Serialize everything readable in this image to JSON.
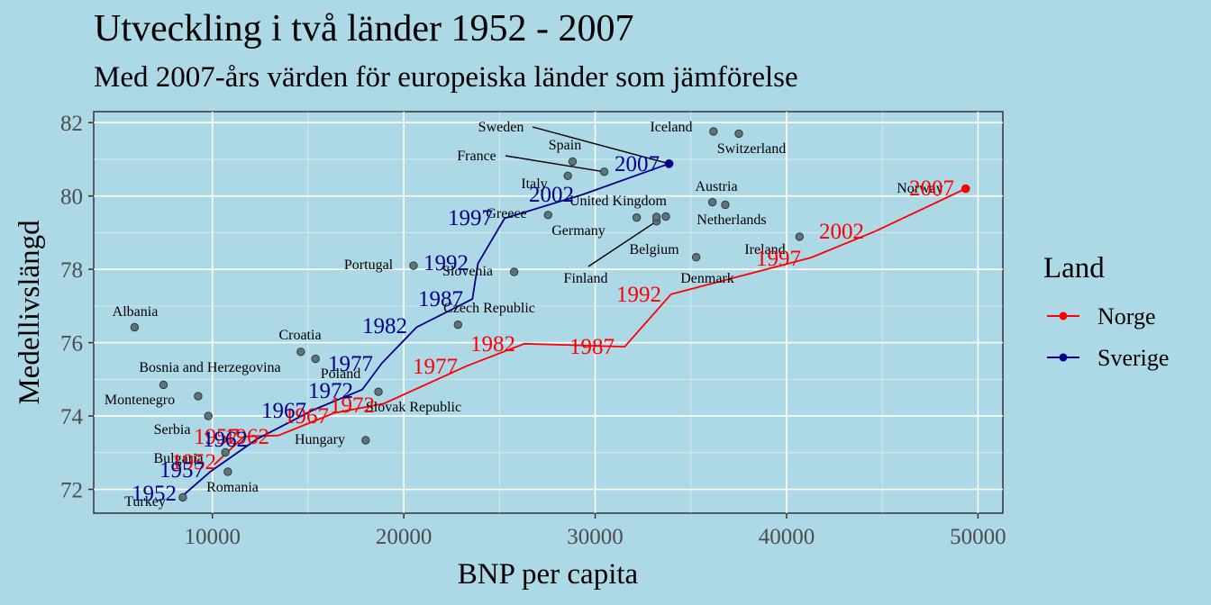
{
  "title": "Utveckling i två länder 1952 - 2007",
  "subtitle": "Med 2007-års värden för europeiska länder som jämförelse",
  "chart_data": {
    "type": "scatter",
    "xlabel": "BNP per capita",
    "ylabel": "Medellivslängd",
    "xlim": [
      3800,
      51300
    ],
    "ylim": [
      71.35,
      82.3
    ],
    "xticks": [
      10000,
      20000,
      30000,
      40000,
      50000
    ],
    "xtick_labels": [
      "10000",
      "20000",
      "30000",
      "40000",
      "50000"
    ],
    "yticks": [
      72,
      74,
      76,
      78,
      80,
      82
    ],
    "ytick_labels": [
      "72",
      "74",
      "76",
      "78",
      "80",
      "82"
    ],
    "grid": true,
    "background": "#add8e6",
    "legend": {
      "title": "Land",
      "position": "right"
    },
    "series": [
      {
        "name": "Norge",
        "color": "#ff0000",
        "points": [
          {
            "year": "1952",
            "x": 10095,
            "y": 72.67
          },
          {
            "year": "1957",
            "x": 11654,
            "y": 73.44
          },
          {
            "year": "1962",
            "x": 13450,
            "y": 73.47
          },
          {
            "year": "1967",
            "x": 16362,
            "y": 74.08
          },
          {
            "year": "1972",
            "x": 18965,
            "y": 74.34
          },
          {
            "year": "1977",
            "x": 23311,
            "y": 75.37
          },
          {
            "year": "1982",
            "x": 26298,
            "y": 75.97
          },
          {
            "year": "1987",
            "x": 31541,
            "y": 75.89
          },
          {
            "year": "1992",
            "x": 33965,
            "y": 77.32
          },
          {
            "year": "1997",
            "x": 41283,
            "y": 78.32
          },
          {
            "year": "2002",
            "x": 44684,
            "y": 79.05
          },
          {
            "year": "2007",
            "x": 49357,
            "y": 80.2
          }
        ]
      },
      {
        "name": "Sverige",
        "color": "#00008b",
        "points": [
          {
            "year": "1952",
            "x": 8528,
            "y": 71.86
          },
          {
            "year": "1957",
            "x": 9912,
            "y": 72.49
          },
          {
            "year": "1962",
            "x": 12329,
            "y": 73.37
          },
          {
            "year": "1967",
            "x": 15258,
            "y": 74.16
          },
          {
            "year": "1972",
            "x": 17832,
            "y": 74.72
          },
          {
            "year": "1977",
            "x": 18855,
            "y": 75.44
          },
          {
            "year": "1982",
            "x": 20667,
            "y": 76.42
          },
          {
            "year": "1987",
            "x": 23587,
            "y": 77.19
          },
          {
            "year": "1992",
            "x": 23880,
            "y": 78.16
          },
          {
            "year": "1997",
            "x": 25267,
            "y": 79.39
          },
          {
            "year": "2002",
            "x": 29342,
            "y": 80.04
          },
          {
            "year": "2007",
            "x": 33860,
            "y": 80.88
          }
        ]
      }
    ],
    "countries": [
      {
        "name": "Albania",
        "x": 5937,
        "y": 76.42
      },
      {
        "name": "Austria",
        "x": 36126,
        "y": 79.83
      },
      {
        "name": "Belgium",
        "x": 33693,
        "y": 79.44
      },
      {
        "name": "Bosnia and Herzegovina",
        "x": 7446,
        "y": 74.85
      },
      {
        "name": "Bulgaria",
        "x": 10681,
        "y": 73.01
      },
      {
        "name": "Croatia",
        "x": 14619,
        "y": 75.75
      },
      {
        "name": "Czech Republic",
        "x": 22833,
        "y": 76.49
      },
      {
        "name": "Denmark",
        "x": 35278,
        "y": 78.33
      },
      {
        "name": "Finland",
        "x": 33207,
        "y": 79.31
      },
      {
        "name": "France",
        "x": 30470,
        "y": 80.66
      },
      {
        "name": "Germany",
        "x": 32170,
        "y": 79.41
      },
      {
        "name": "Greece",
        "x": 27538,
        "y": 79.48
      },
      {
        "name": "Hungary",
        "x": 18009,
        "y": 73.34
      },
      {
        "name": "Iceland",
        "x": 36181,
        "y": 81.76
      },
      {
        "name": "Ireland",
        "x": 40676,
        "y": 78.89
      },
      {
        "name": "Italy",
        "x": 28570,
        "y": 80.55
      },
      {
        "name": "Montenegro",
        "x": 9254,
        "y": 74.54
      },
      {
        "name": "Netherlands",
        "x": 36798,
        "y": 79.76
      },
      {
        "name": "Norway",
        "x": 49357,
        "y": 80.2
      },
      {
        "name": "Poland",
        "x": 15390,
        "y": 75.56
      },
      {
        "name": "Portugal",
        "x": 20510,
        "y": 78.1
      },
      {
        "name": "Romania",
        "x": 10808,
        "y": 72.48
      },
      {
        "name": "Serbia",
        "x": 9787,
        "y": 74.0
      },
      {
        "name": "Slovak Republic",
        "x": 18678,
        "y": 74.66
      },
      {
        "name": "Slovenia",
        "x": 25768,
        "y": 77.93
      },
      {
        "name": "Spain",
        "x": 28821,
        "y": 80.94
      },
      {
        "name": "Sweden",
        "x": 33860,
        "y": 80.88
      },
      {
        "name": "Switzerland",
        "x": 37506,
        "y": 81.7
      },
      {
        "name": "Turkey",
        "x": 8458,
        "y": 71.78
      },
      {
        "name": "United Kingdom",
        "x": 33203,
        "y": 79.43
      }
    ]
  }
}
